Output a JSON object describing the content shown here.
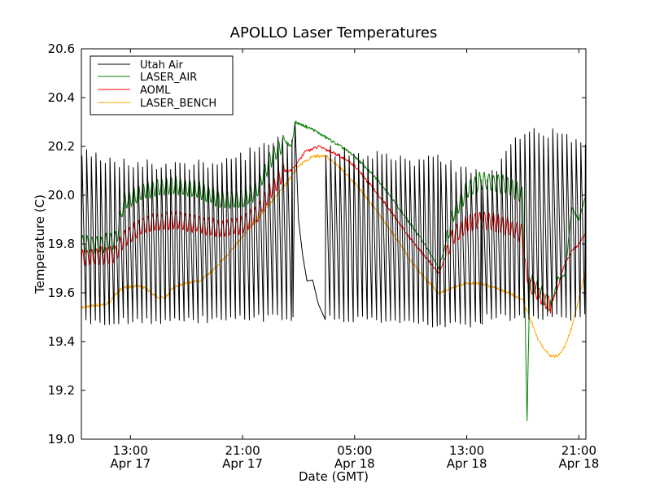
{
  "chart_data": {
    "type": "line",
    "title": "APOLLO Laser Temperatures",
    "xlabel": "Date (GMT)",
    "ylabel": "Temperature (C)",
    "xlim_hours": [
      9.5,
      45.5
    ],
    "ylim": [
      19.0,
      20.6
    ],
    "yticks": [
      19.0,
      19.2,
      19.4,
      19.6,
      19.8,
      20.0,
      20.2,
      20.4,
      20.6
    ],
    "ytick_labels": [
      "19.0",
      "19.2",
      "19.4",
      "19.6",
      "19.8",
      "20.0",
      "20.2",
      "20.4",
      "20.6"
    ],
    "xticks": [
      {
        "hours": 13,
        "time": "13:00",
        "date": "Apr 17"
      },
      {
        "hours": 21,
        "time": "21:00",
        "date": "Apr 17"
      },
      {
        "hours": 29,
        "time": "05:00",
        "date": "Apr 18"
      },
      {
        "hours": 37,
        "time": "13:00",
        "date": "Apr 18"
      },
      {
        "hours": 45,
        "time": "21:00",
        "date": "Apr 18"
      }
    ],
    "legend_position": "top-left",
    "series": [
      {
        "name": "Utah Air",
        "color": "#000000",
        "mode": "cycling",
        "segments": [
          {
            "x": [
              9.5,
              24.6
            ],
            "period": 0.333,
            "low": [
              [
                9.5,
                19.48
              ],
              [
                24.6,
                19.5
              ]
            ],
            "high": [
              [
                9.5,
                20.18
              ],
              [
                13.0,
                20.12
              ],
              [
                16.0,
                20.12
              ],
              [
                20.0,
                20.14
              ],
              [
                23.5,
                20.22
              ],
              [
                24.6,
                20.22
              ]
            ]
          },
          {
            "x": [
              26.9,
              35.1
            ],
            "period": 0.333,
            "low": [
              [
                26.9,
                19.5
              ],
              [
                35.1,
                19.47
              ]
            ],
            "high": [
              [
                26.9,
                20.18
              ],
              [
                30.0,
                20.17
              ],
              [
                33.0,
                20.14
              ],
              [
                35.1,
                20.15
              ]
            ]
          },
          {
            "x": [
              35.1,
              38.1
            ],
            "period": 0.36,
            "low": [
              [
                35.1,
                19.47
              ],
              [
                38.1,
                19.47
              ]
            ],
            "high": [
              [
                35.1,
                20.14
              ],
              [
                38.1,
                20.08
              ]
            ]
          },
          {
            "x": [
              38.1,
              45.5
            ],
            "period": 0.333,
            "low": [
              [
                38.1,
                19.5
              ],
              [
                45.5,
                19.5
              ]
            ],
            "high": [
              [
                38.1,
                20.05
              ],
              [
                41.0,
                20.25
              ],
              [
                44.0,
                20.25
              ],
              [
                45.5,
                20.2
              ]
            ]
          }
        ],
        "points": [
          [
            24.6,
            19.52
          ],
          [
            24.75,
            20.3
          ],
          [
            25.0,
            19.9
          ],
          [
            25.3,
            19.75
          ],
          [
            25.6,
            19.66
          ],
          [
            26.0,
            19.65
          ],
          [
            26.4,
            19.56
          ],
          [
            26.9,
            19.49
          ]
        ]
      },
      {
        "name": "LASER_AIR",
        "color": "#008000",
        "mode": "mixed",
        "points": [
          [
            9.5,
            19.8
          ],
          [
            10.5,
            19.8
          ],
          [
            11.0,
            19.8
          ],
          [
            12.0,
            19.82
          ],
          [
            12.5,
            19.97
          ],
          [
            14.0,
            20.02
          ],
          [
            16.0,
            20.04
          ],
          [
            18.0,
            20.02
          ],
          [
            19.5,
            19.98
          ],
          [
            21.0,
            19.98
          ],
          [
            22.0,
            20.02
          ],
          [
            23.0,
            20.15
          ],
          [
            24.0,
            20.22
          ],
          [
            24.5,
            20.2
          ],
          [
            24.75,
            20.3
          ],
          [
            26.0,
            20.27
          ],
          [
            28.0,
            20.2
          ],
          [
            29.0,
            20.16
          ],
          [
            30.0,
            20.1
          ],
          [
            31.0,
            20.04
          ],
          [
            32.0,
            19.96
          ],
          [
            33.0,
            19.88
          ],
          [
            34.0,
            19.8
          ],
          [
            35.0,
            19.7
          ],
          [
            35.5,
            19.8
          ],
          [
            36.0,
            19.92
          ],
          [
            37.0,
            20.02
          ],
          [
            38.0,
            20.06
          ],
          [
            39.0,
            20.05
          ],
          [
            40.0,
            20.04
          ],
          [
            41.0,
            20.0
          ],
          [
            41.3,
            19.08
          ],
          [
            41.5,
            19.65
          ],
          [
            42.0,
            19.62
          ],
          [
            43.0,
            19.54
          ],
          [
            43.5,
            19.66
          ],
          [
            44.0,
            19.67
          ],
          [
            44.5,
            19.95
          ],
          [
            45.0,
            19.9
          ],
          [
            45.5,
            20.0
          ]
        ],
        "osc": [
          {
            "x": [
              9.5,
              24.0
            ],
            "period": 0.333,
            "amp": 0.035
          },
          {
            "x": [
              35.5,
              41.2
            ],
            "period": 0.333,
            "amp": 0.035
          },
          {
            "x": [
              41.6,
              43.0
            ],
            "period": 0.333,
            "amp": 0.03
          }
        ]
      },
      {
        "name": "AOML",
        "color": "#ff0000",
        "mode": "mixed",
        "points": [
          [
            9.5,
            19.74
          ],
          [
            10.5,
            19.75
          ],
          [
            11.0,
            19.75
          ],
          [
            12.0,
            19.76
          ],
          [
            12.5,
            19.82
          ],
          [
            14.0,
            19.88
          ],
          [
            16.0,
            19.9
          ],
          [
            18.0,
            19.88
          ],
          [
            19.5,
            19.86
          ],
          [
            21.0,
            19.88
          ],
          [
            22.0,
            19.92
          ],
          [
            23.0,
            20.02
          ],
          [
            24.0,
            20.1
          ],
          [
            24.5,
            20.1
          ],
          [
            25.5,
            20.18
          ],
          [
            26.5,
            20.2
          ],
          [
            28.0,
            20.16
          ],
          [
            29.0,
            20.12
          ],
          [
            30.0,
            20.05
          ],
          [
            31.0,
            19.98
          ],
          [
            32.0,
            19.9
          ],
          [
            33.0,
            19.82
          ],
          [
            34.0,
            19.75
          ],
          [
            35.0,
            19.68
          ],
          [
            35.5,
            19.75
          ],
          [
            36.0,
            19.83
          ],
          [
            37.0,
            19.88
          ],
          [
            38.0,
            19.9
          ],
          [
            39.0,
            19.89
          ],
          [
            40.0,
            19.87
          ],
          [
            41.0,
            19.84
          ],
          [
            41.3,
            19.65
          ],
          [
            41.5,
            19.63
          ],
          [
            42.0,
            19.6
          ],
          [
            43.0,
            19.55
          ],
          [
            43.5,
            19.62
          ],
          [
            44.0,
            19.72
          ],
          [
            44.5,
            19.77
          ],
          [
            45.0,
            19.8
          ],
          [
            45.5,
            19.85
          ]
        ],
        "osc": [
          {
            "x": [
              9.5,
              24.0
            ],
            "period": 0.333,
            "amp": 0.035
          },
          {
            "x": [
              35.5,
              41.2
            ],
            "period": 0.333,
            "amp": 0.035
          },
          {
            "x": [
              41.4,
              43.0
            ],
            "period": 0.333,
            "amp": 0.03
          }
        ]
      },
      {
        "name": "LASER_BENCH",
        "color": "#ffa500",
        "mode": "points",
        "points": [
          [
            9.5,
            19.54
          ],
          [
            10.5,
            19.55
          ],
          [
            11.0,
            19.55
          ],
          [
            11.5,
            19.56
          ],
          [
            12.0,
            19.6
          ],
          [
            12.5,
            19.62
          ],
          [
            13.5,
            19.63
          ],
          [
            14.0,
            19.62
          ],
          [
            15.0,
            19.58
          ],
          [
            15.5,
            19.58
          ],
          [
            16.0,
            19.62
          ],
          [
            17.0,
            19.64
          ],
          [
            18.0,
            19.65
          ],
          [
            19.0,
            19.7
          ],
          [
            20.0,
            19.76
          ],
          [
            21.0,
            19.83
          ],
          [
            22.0,
            19.9
          ],
          [
            23.0,
            19.97
          ],
          [
            24.0,
            20.04
          ],
          [
            25.0,
            20.12
          ],
          [
            26.0,
            20.16
          ],
          [
            27.0,
            20.16
          ],
          [
            28.0,
            20.11
          ],
          [
            29.0,
            20.05
          ],
          [
            30.0,
            19.98
          ],
          [
            31.0,
            19.9
          ],
          [
            32.0,
            19.82
          ],
          [
            33.0,
            19.73
          ],
          [
            34.0,
            19.66
          ],
          [
            35.0,
            19.6
          ],
          [
            36.0,
            19.62
          ],
          [
            37.0,
            19.64
          ],
          [
            38.0,
            19.64
          ],
          [
            39.0,
            19.62
          ],
          [
            40.0,
            19.6
          ],
          [
            41.0,
            19.57
          ],
          [
            41.5,
            19.5
          ],
          [
            42.0,
            19.42
          ],
          [
            42.5,
            19.37
          ],
          [
            43.0,
            19.34
          ],
          [
            43.5,
            19.34
          ],
          [
            44.0,
            19.38
          ],
          [
            44.5,
            19.46
          ],
          [
            45.0,
            19.58
          ],
          [
            45.5,
            19.7
          ]
        ]
      }
    ]
  }
}
